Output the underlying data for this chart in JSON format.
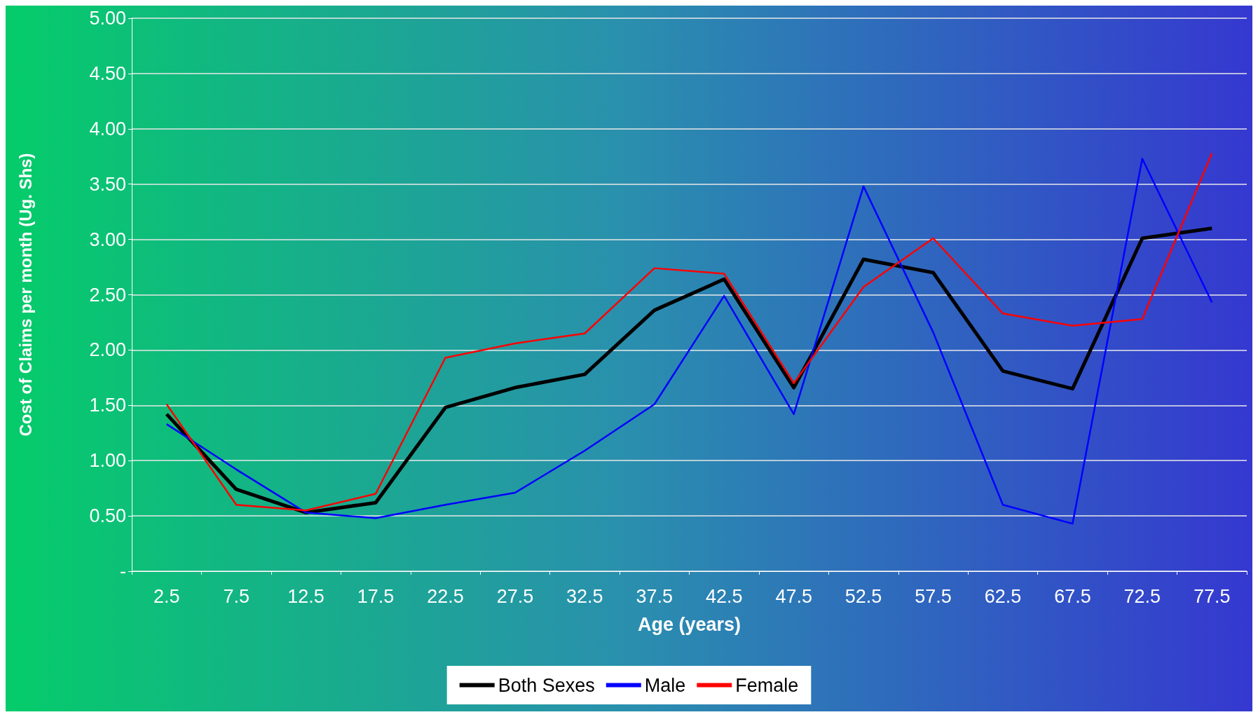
{
  "chart_data": {
    "type": "line",
    "xlabel": "Age (years)",
    "ylabel": "Cost of Claims per month (Ug. Shs)",
    "categories": [
      "2.5",
      "7.5",
      "12.5",
      "17.5",
      "22.5",
      "27.5",
      "32.5",
      "37.5",
      "42.5",
      "47.5",
      "52.5",
      "57.5",
      "62.5",
      "67.5",
      "72.5",
      "77.5"
    ],
    "series": [
      {
        "name": "Both Sexes",
        "color": "#000000",
        "values": [
          1.42,
          0.74,
          0.53,
          0.62,
          1.48,
          1.66,
          1.78,
          2.36,
          2.64,
          1.66,
          2.82,
          2.7,
          1.81,
          1.65,
          3.01,
          3.1
        ]
      },
      {
        "name": "Male",
        "color": "#0000ff",
        "values": [
          1.33,
          0.92,
          0.53,
          0.48,
          0.6,
          0.71,
          1.09,
          1.51,
          2.49,
          1.42,
          3.48,
          2.16,
          0.6,
          0.43,
          3.73,
          2.43
        ]
      },
      {
        "name": "Female",
        "color": "#ff0000",
        "values": [
          1.51,
          0.6,
          0.55,
          0.7,
          1.93,
          2.06,
          2.15,
          2.74,
          2.69,
          1.7,
          2.57,
          3.01,
          2.33,
          2.22,
          2.28,
          3.78
        ]
      }
    ],
    "ylim": [
      0,
      5
    ],
    "yticks": [
      {
        "value": 0,
        "label": "-"
      },
      {
        "value": 0.5,
        "label": "0.50"
      },
      {
        "value": 1,
        "label": "1.00"
      },
      {
        "value": 1.5,
        "label": "1.50"
      },
      {
        "value": 2,
        "label": "2.00"
      },
      {
        "value": 2.5,
        "label": "2.50"
      },
      {
        "value": 3,
        "label": "3.00"
      },
      {
        "value": 3.5,
        "label": "3.50"
      },
      {
        "value": 4,
        "label": "4.00"
      },
      {
        "value": 4.5,
        "label": "4.50"
      },
      {
        "value": 5,
        "label": "5.00"
      }
    ],
    "grid": "y",
    "legend": "bottom",
    "marker": "none",
    "line_style": "solid"
  }
}
